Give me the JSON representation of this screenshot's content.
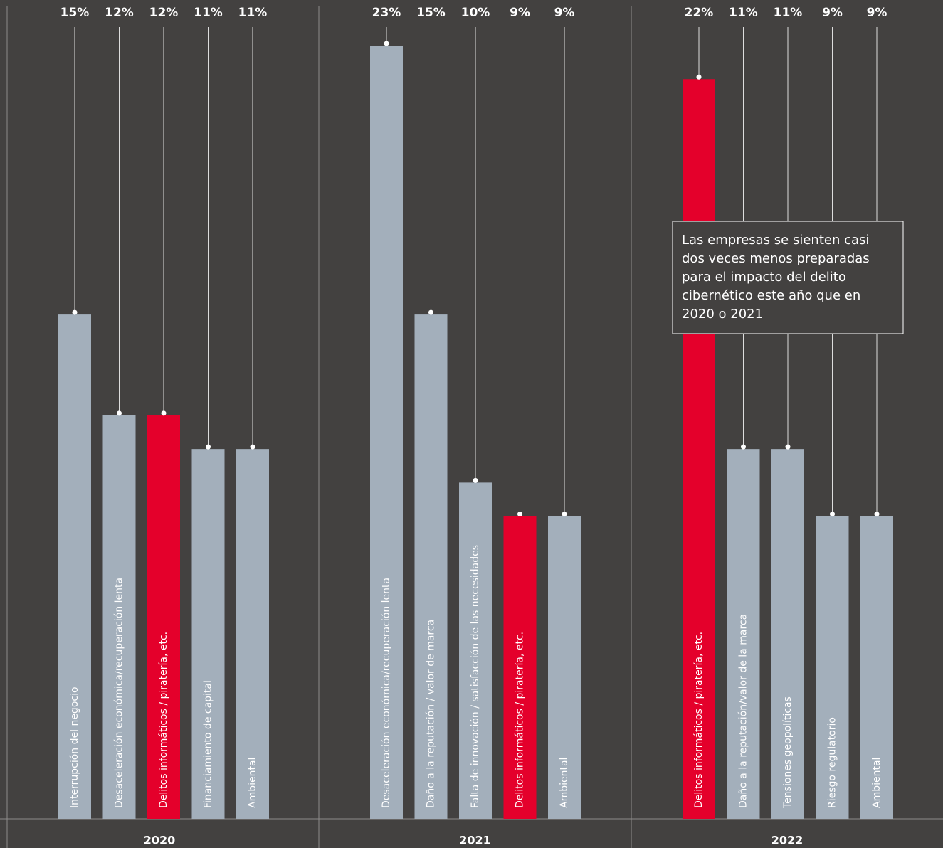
{
  "chart_data": [
    {
      "type": "bar",
      "title": "2020",
      "categories": [
        "Interrupción del negocio",
        "Desaceleración económica/recuperación lenta",
        "Delitos informáticos / piratería, etc.",
        "Financiamiento de capital",
        "Ambiental"
      ],
      "values": [
        15,
        12,
        12,
        11,
        11
      ],
      "value_labels": [
        "15%",
        "12%",
        "12%",
        "11%",
        "11%"
      ],
      "colors": [
        "#a3afbb",
        "#a3afbb",
        "#e4002b",
        "#a3afbb",
        "#a3afbb"
      ]
    },
    {
      "type": "bar",
      "title": "2021",
      "categories": [
        "Desaceleración económica/recuperación lenta",
        "Daño a la reputación / valor de marca",
        "Falta de innovación / satisfacción de las necesidades",
        "Delitos informáticos / piratería, etc.",
        "Ambiental"
      ],
      "values": [
        23,
        15,
        10,
        9,
        9
      ],
      "value_labels": [
        "23%",
        "15%",
        "10%",
        "9%",
        "9%"
      ],
      "colors": [
        "#a3afbb",
        "#a3afbb",
        "#a3afbb",
        "#e4002b",
        "#a3afbb"
      ]
    },
    {
      "type": "bar",
      "title": "2022",
      "categories": [
        "Delitos informáticos / piratería, etc.",
        "Daño a la reputación/valor de la marca",
        "Tensiones geopolíticas",
        "Riesgo regulatorio",
        "Ambiental"
      ],
      "values": [
        22,
        11,
        11,
        9,
        9
      ],
      "value_labels": [
        "22%",
        "11%",
        "11%",
        "9%",
        "9%"
      ],
      "colors": [
        "#e4002b",
        "#a3afbb",
        "#a3afbb",
        "#a3afbb",
        "#a3afbb"
      ],
      "annotation": [
        "Las empresas se sienten casi",
        "dos veces menos preparadas",
        "para el impacto del delito",
        "cibernético este año que en",
        "2020 o 2021"
      ]
    }
  ]
}
